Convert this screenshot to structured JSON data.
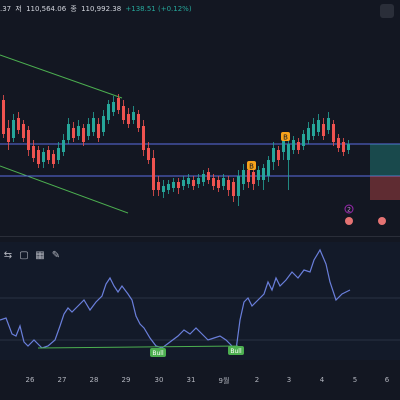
{
  "ohlc": {
    "open": ".37",
    "high_label": "저",
    "low": "110,564.06",
    "close_label": "종",
    "close": "110,992.38",
    "change": "+138.51 (+0.12%)"
  },
  "markers": {
    "buy_label": "B",
    "event_label": "2"
  },
  "rsi": {
    "bull_label": "Bull"
  },
  "toolbar": {
    "icons": [
      "swap-icon",
      "square-icon",
      "grid-icon",
      "pen-icon"
    ]
  },
  "xaxis": {
    "labels": [
      "26",
      "27",
      "28",
      "29",
      "30",
      "31",
      "9월",
      "2",
      "3",
      "4",
      "5",
      "6"
    ]
  },
  "colors": {
    "up": "#26a69a",
    "down": "#ef5350",
    "level": "#5b6ee1",
    "rsi": "#6a7fdb",
    "trend": "#4caf50"
  }
}
